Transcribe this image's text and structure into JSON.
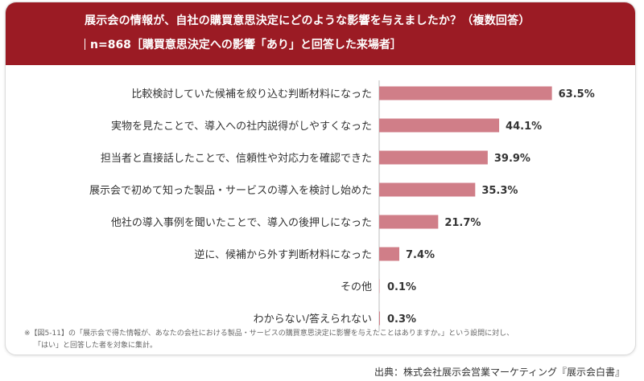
{
  "header": {
    "title": "展示会の情報が、自社の購買意思決定にどのような影響を与えましたか？（複数回答）",
    "subtitle": "n=868［購買意思決定への影響「あり」と回答した来場者］"
  },
  "colors": {
    "header_bg": "#9b1b24",
    "bar": "#d07e88",
    "axis": "#bbbbbb"
  },
  "chart_data": {
    "type": "bar",
    "orientation": "horizontal",
    "title": "展示会の情報が、自社の購買意思決定にどのような影響を与えましたか？（複数回答）",
    "unit": "%",
    "categories": [
      "比較検討していた候補を絞り込む判断材料になった",
      "実物を見たことで、導入への社内説得がしやすくなった",
      "担当者と直接話したことで、信頼性や対応力を確認できた",
      "展示会で初めて知った製品・サービスの導入を検討し始めた",
      "他社の導入事例を聞いたことで、導入の後押しになった",
      "逆に、候補から外す判断材料になった",
      "その他",
      "わからない/答えられない"
    ],
    "values": [
      63.5,
      44.1,
      39.9,
      35.3,
      21.7,
      7.4,
      0.1,
      0.3
    ],
    "value_labels": [
      "63.5%",
      "44.1%",
      "39.9%",
      "35.3%",
      "21.7%",
      "7.4%",
      "0.1%",
      "0.3%"
    ],
    "xlim": [
      0,
      100
    ]
  },
  "footnote": {
    "line1": "※【図5-11】の「展示会で得た情報が、あなたの会社における製品・サービスの購買意思決定に影響を与えたことはありますか。」という設問に対し、",
    "line2": "「はい」と回答した者を対象に集計。"
  },
  "source": "出典：株式会社展示会営業マーケティング『展示会白書』"
}
